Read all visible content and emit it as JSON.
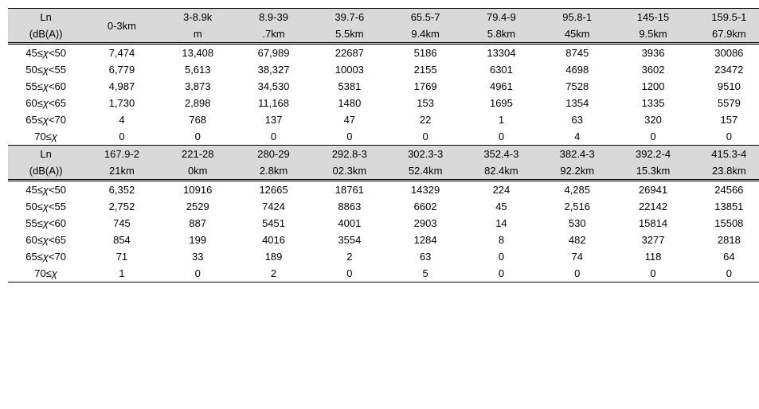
{
  "section1": {
    "header_top": [
      "Ln",
      "",
      "3-8.9k",
      "8.9-39",
      "39.7-6",
      "65.5-7",
      "79.4-9",
      "95.8-1",
      "145-15",
      "159.5-1"
    ],
    "header_bot": [
      "(dB(A))",
      "0-3km",
      "m",
      ".7km",
      "5.5km",
      "9.4km",
      "5.8km",
      "45km",
      "9.5km",
      "67.9km"
    ],
    "rows": [
      {
        "label": "45≤χ<50",
        "v": [
          "7,474",
          "13,408",
          "67,989",
          "22687",
          "5186",
          "13304",
          "8745",
          "3936",
          "30086"
        ]
      },
      {
        "label": "50≤χ<55",
        "v": [
          "6,779",
          "5,613",
          "38,327",
          "10003",
          "2155",
          "6301",
          "4698",
          "3602",
          "23472"
        ]
      },
      {
        "label": "55≤χ<60",
        "v": [
          "4,987",
          "3,873",
          "34,530",
          "5381",
          "1769",
          "4961",
          "7528",
          "1200",
          "9510"
        ]
      },
      {
        "label": "60≤χ<65",
        "v": [
          "1,730",
          "2,898",
          "11,168",
          "1480",
          "153",
          "1695",
          "1354",
          "1335",
          "5579"
        ]
      },
      {
        "label": "65≤χ<70",
        "v": [
          "4",
          "768",
          "137",
          "47",
          "22",
          "1",
          "63",
          "320",
          "157"
        ]
      },
      {
        "label": "70≤χ",
        "v": [
          "0",
          "0",
          "0",
          "0",
          "0",
          "0",
          "4",
          "0",
          "0"
        ]
      }
    ]
  },
  "section2": {
    "header_top": [
      "Ln",
      "167.9-2",
      "221-28",
      "280-29",
      "292.8-3",
      "302.3-3",
      "352.4-3",
      "382.4-3",
      "392.2-4",
      "415.3-4"
    ],
    "header_bot": [
      "(dB(A))",
      "21km",
      "0km",
      "2.8km",
      "02.3km",
      "52.4km",
      "82.4km",
      "92.2km",
      "15.3km",
      "23.8km"
    ],
    "rows": [
      {
        "label": "45≤χ<50",
        "v": [
          "6,352",
          "10916",
          "12665",
          "18761",
          "14329",
          "224",
          "4,285",
          "26941",
          "24566"
        ]
      },
      {
        "label": "50≤χ<55",
        "v": [
          "2,752",
          "2529",
          "7424",
          "8863",
          "6602",
          "45",
          "2,516",
          "22142",
          "13851"
        ]
      },
      {
        "label": "55≤χ<60",
        "v": [
          "745",
          "887",
          "5451",
          "4001",
          "2903",
          "14",
          "530",
          "15814",
          "15508"
        ]
      },
      {
        "label": "60≤χ<65",
        "v": [
          "854",
          "199",
          "4016",
          "3554",
          "1284",
          "8",
          "482",
          "3277",
          "2818"
        ]
      },
      {
        "label": "65≤χ<70",
        "v": [
          "71",
          "33",
          "189",
          "2",
          "63",
          "0",
          "74",
          "118",
          "64"
        ]
      },
      {
        "label": "70≤χ",
        "v": [
          "1",
          "0",
          "2",
          "0",
          "5",
          "0",
          "0",
          "0",
          "0"
        ]
      }
    ]
  },
  "colors": {
    "header_bg": "#d9d9d9",
    "background": "#ffffff",
    "border": "#000000"
  }
}
